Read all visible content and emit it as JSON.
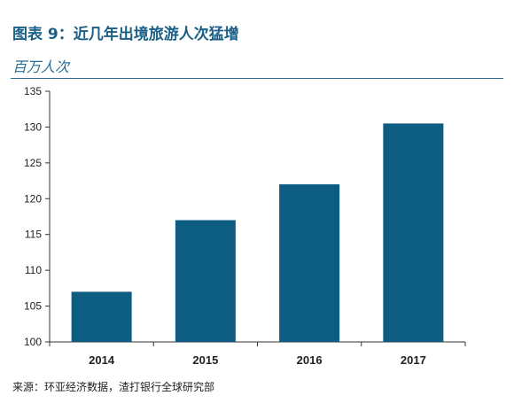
{
  "header": {
    "title": "图表 9：近几年出境旅游人次猛增",
    "unit": "百万人次"
  },
  "footer": {
    "source": "来源：环亚经济数据，渣打银行全球研究部"
  },
  "colors": {
    "bar": "#0d5c82",
    "accent": "#1a5f86"
  },
  "chart_data": {
    "type": "bar",
    "title": "图表 9：近几年出境旅游人次猛增",
    "ylabel": "百万人次",
    "xlabel": "",
    "categories": [
      "2014",
      "2015",
      "2016",
      "2017"
    ],
    "values": [
      107,
      117,
      122,
      130.5
    ],
    "ylim": [
      100,
      135
    ],
    "yticks": [
      100,
      105,
      110,
      115,
      120,
      125,
      130,
      135
    ],
    "grid": false,
    "legend": "none"
  }
}
